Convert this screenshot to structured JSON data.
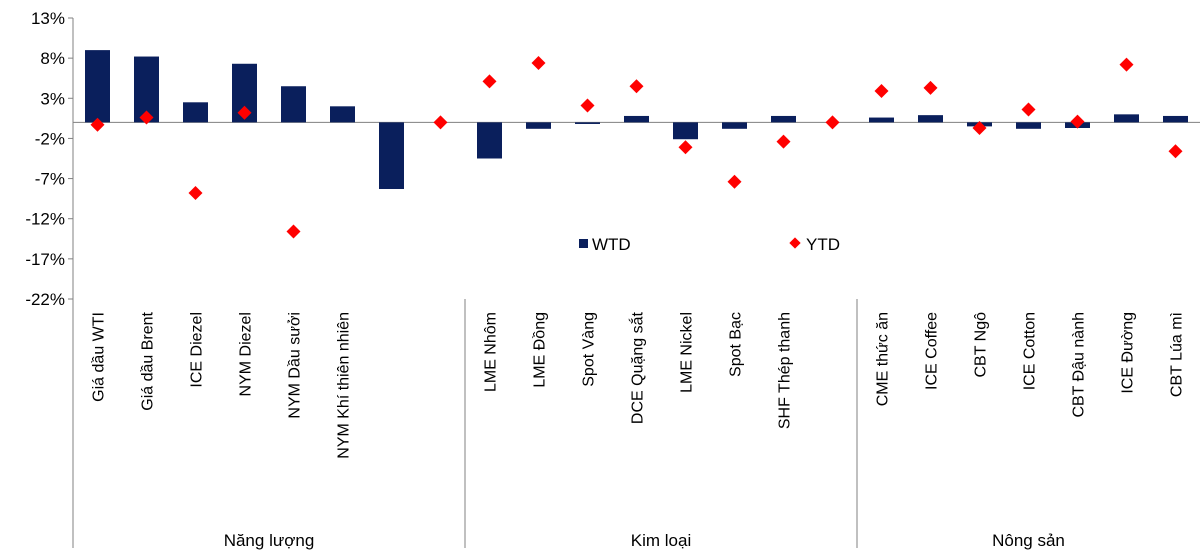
{
  "chart_data": {
    "type": "bar",
    "ylim": [
      -22,
      13
    ],
    "yticks": [
      13,
      8,
      3,
      -2,
      -7,
      -12,
      -17,
      -22
    ],
    "ytick_labels": [
      "13%",
      "8%",
      "3%",
      "-2%",
      "-7%",
      "-12%",
      "-17%",
      "-22%"
    ],
    "categories": [
      "Giá dầu WTI",
      "Giá dầu Brent",
      "ICE Diezel",
      "NYM Diezel",
      "NYM Dầu sưởi",
      "NYM Khí thiên nhiên",
      "",
      "",
      "LME Nhôm",
      "LME Đồng",
      "Spot Vàng",
      "DCE Quặng sắt",
      "LME Nickel",
      "Spot Bạc",
      "SHF Thép thanh",
      "",
      "CME thức ăn",
      "ICE Coffee",
      "CBT Ngô",
      "ICE Cotton",
      "CBT Đậu nành",
      "ICE Đường",
      "CBT Lúa mì"
    ],
    "groups": [
      {
        "label": "Năng lượng",
        "start": 0,
        "end": 7
      },
      {
        "label": "Kim loại",
        "start": 8,
        "end": 15
      },
      {
        "label": "Nông sản",
        "start": 16,
        "end": 22
      }
    ],
    "series": [
      {
        "name": "WTD",
        "type": "bar",
        "color": "#0a1f5c",
        "values": [
          9.0,
          8.2,
          2.5,
          7.3,
          4.5,
          2.0,
          -8.3,
          null,
          -4.5,
          -0.8,
          -0.2,
          0.8,
          -2.1,
          -0.8,
          0.8,
          null,
          0.6,
          0.9,
          -0.5,
          -0.8,
          -0.7,
          1.0,
          0.8
        ]
      },
      {
        "name": "YTD",
        "type": "scatter",
        "color": "#ff0000",
        "values": [
          -0.3,
          0.6,
          -8.8,
          1.2,
          -13.6,
          null,
          null,
          0.0,
          5.1,
          7.4,
          2.1,
          4.5,
          -3.1,
          -7.4,
          -2.4,
          0.0,
          3.9,
          4.3,
          -0.7,
          1.6,
          0.1,
          7.2,
          -3.6
        ]
      }
    ],
    "legend_position": "middle-right",
    "grid": false
  }
}
